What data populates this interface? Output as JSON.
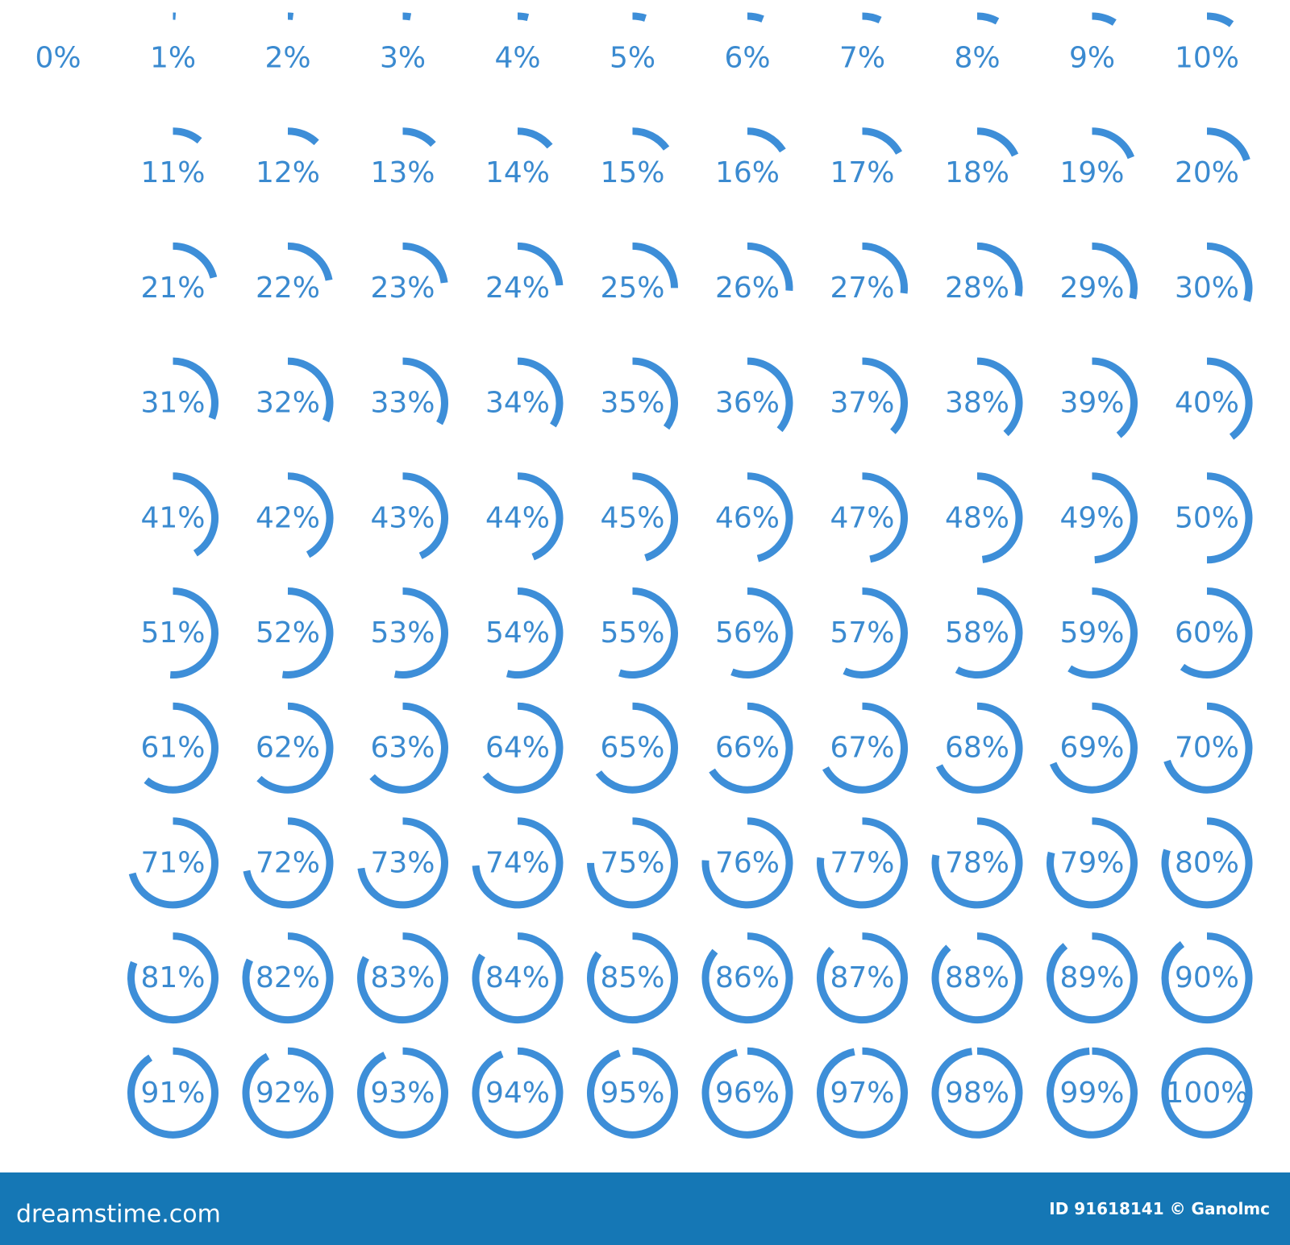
{
  "items": {
    "labels": [
      "0%",
      "1%",
      "2%",
      "3%",
      "4%",
      "5%",
      "6%",
      "7%",
      "8%",
      "9%",
      "10%",
      "11%",
      "12%",
      "13%",
      "14%",
      "15%",
      "16%",
      "17%",
      "18%",
      "19%",
      "20%",
      "21%",
      "22%",
      "23%",
      "24%",
      "25%",
      "26%",
      "27%",
      "28%",
      "29%",
      "30%",
      "31%",
      "32%",
      "33%",
      "34%",
      "35%",
      "36%",
      "37%",
      "38%",
      "39%",
      "40%",
      "41%",
      "42%",
      "43%",
      "44%",
      "45%",
      "46%",
      "47%",
      "48%",
      "49%",
      "50%",
      "51%",
      "52%",
      "53%",
      "54%",
      "55%",
      "56%",
      "57%",
      "58%",
      "59%",
      "60%",
      "61%",
      "62%",
      "63%",
      "64%",
      "65%",
      "66%",
      "67%",
      "68%",
      "69%",
      "70%",
      "71%",
      "72%",
      "73%",
      "74%",
      "75%",
      "76%",
      "77%",
      "78%",
      "79%",
      "80%",
      "81%",
      "82%",
      "83%",
      "84%",
      "85%",
      "86%",
      "87%",
      "88%",
      "89%",
      "90%",
      "91%",
      "92%",
      "93%",
      "94%",
      "95%",
      "96%",
      "97%",
      "98%",
      "99%",
      "100%"
    ],
    "values": [
      0,
      1,
      2,
      3,
      4,
      5,
      6,
      7,
      8,
      9,
      10,
      11,
      12,
      13,
      14,
      15,
      16,
      17,
      18,
      19,
      20,
      21,
      22,
      23,
      24,
      25,
      26,
      27,
      28,
      29,
      30,
      31,
      32,
      33,
      34,
      35,
      36,
      37,
      38,
      39,
      40,
      41,
      42,
      43,
      44,
      45,
      46,
      47,
      48,
      49,
      50,
      51,
      52,
      53,
      54,
      55,
      56,
      57,
      58,
      59,
      60,
      61,
      62,
      63,
      64,
      65,
      66,
      67,
      68,
      69,
      70,
      71,
      72,
      73,
      74,
      75,
      76,
      77,
      78,
      79,
      80,
      81,
      82,
      83,
      84,
      85,
      86,
      87,
      88,
      89,
      90,
      91,
      92,
      93,
      94,
      95,
      96,
      97,
      98,
      99,
      100
    ],
    "color": "#3d8ed8"
  },
  "footer": {
    "site": "dreamstime.com",
    "credit": "ID 91618141 © Ganolmc"
  }
}
